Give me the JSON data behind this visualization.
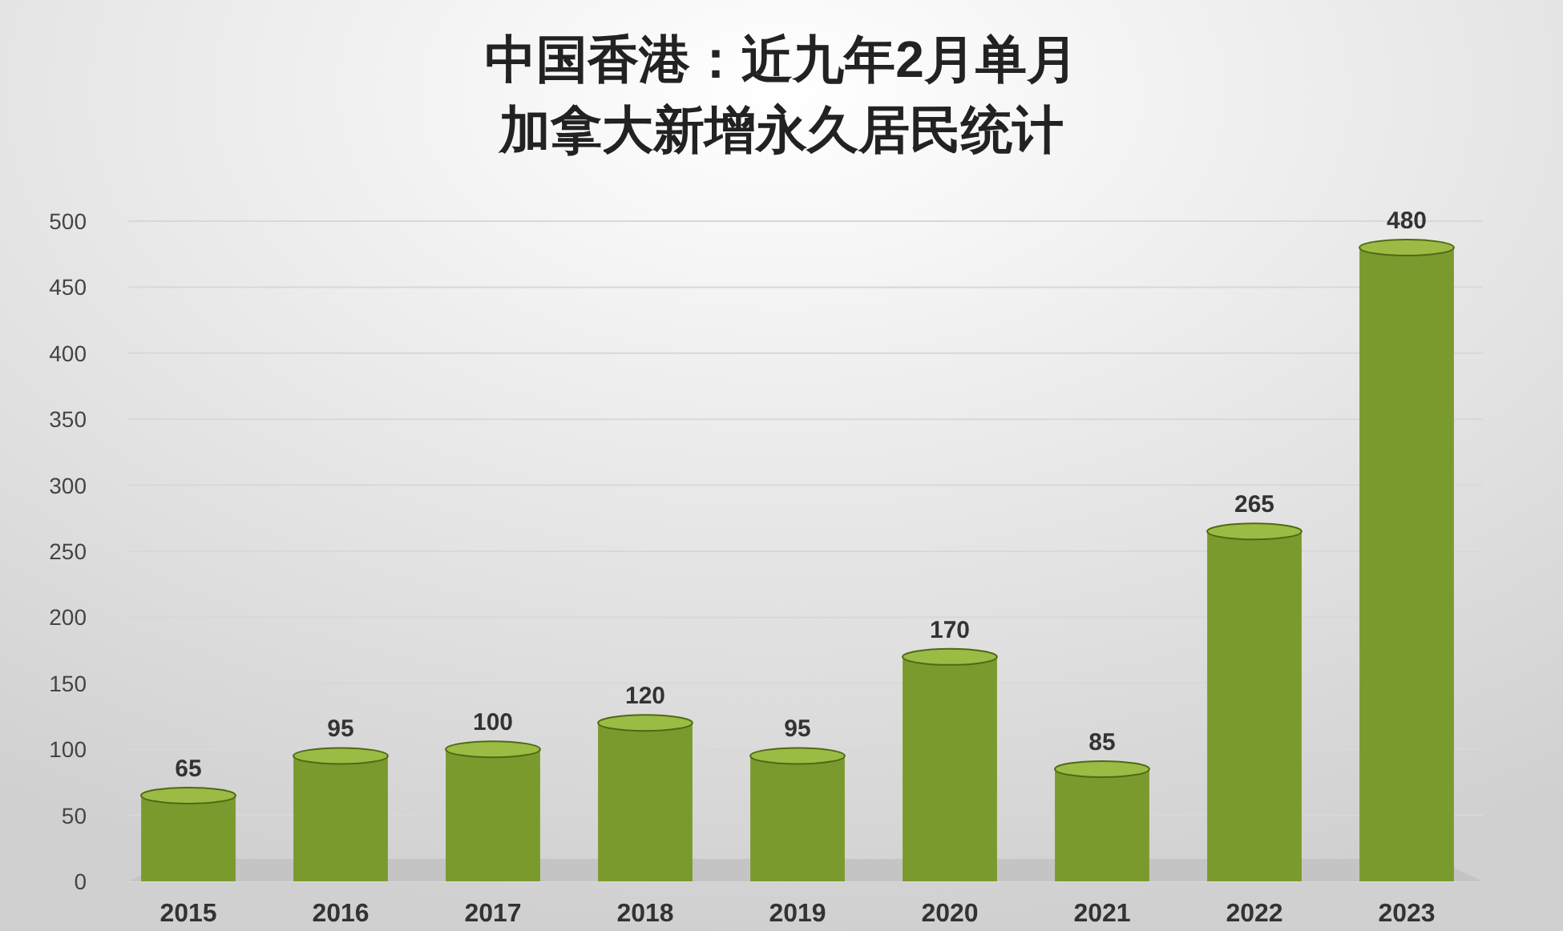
{
  "chart_data": {
    "type": "bar",
    "title": "中国香港：近九年2月单月",
    "subtitle": "加拿大新增永久居民统计",
    "categories": [
      "2015",
      "2016",
      "2017",
      "2018",
      "2019",
      "2020",
      "2021",
      "2022",
      "2023"
    ],
    "values": [
      65,
      95,
      100,
      120,
      95,
      170,
      85,
      265,
      480
    ],
    "color": "#7a9a2e",
    "ylim": [
      0,
      500
    ],
    "yticks": [
      0,
      50,
      100,
      150,
      200,
      250,
      300,
      350,
      400,
      450,
      500
    ],
    "grid": "y",
    "data_labels": true
  }
}
